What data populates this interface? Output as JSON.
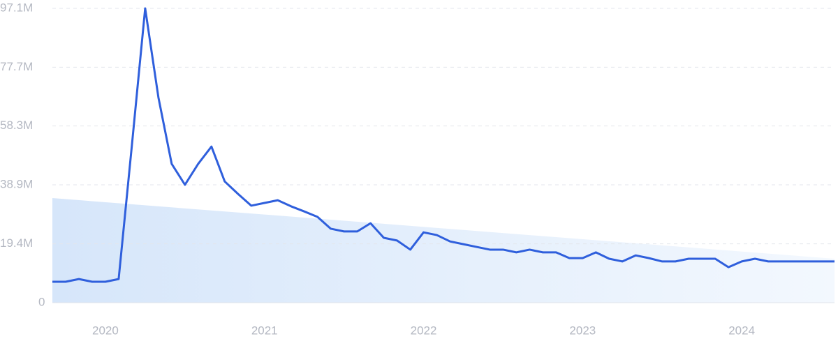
{
  "chart_data": {
    "type": "line",
    "categories": [
      null,
      null,
      null,
      null,
      "2020",
      null,
      null,
      null,
      null,
      null,
      null,
      null,
      null,
      null,
      null,
      null,
      "2021",
      null,
      null,
      null,
      null,
      null,
      null,
      null,
      null,
      null,
      null,
      null,
      "2022",
      null,
      null,
      null,
      null,
      null,
      null,
      null,
      null,
      null,
      null,
      null,
      "2023",
      null,
      null,
      null,
      null,
      null,
      null,
      null,
      null,
      null,
      null,
      null,
      "2024",
      null,
      null,
      null,
      null,
      null,
      null,
      null
    ],
    "series": [
      {
        "color": "#2f5fdc",
        "values": [
          6.9,
          6.9,
          7.8,
          6.9,
          6.9,
          7.8,
          52.0,
          97.1,
          67.7,
          45.8,
          38.9,
          45.8,
          51.5,
          40.0,
          35.9,
          32.0,
          32.9,
          33.8,
          31.8,
          30.1,
          28.3,
          24.4,
          23.5,
          23.5,
          26.2,
          21.4,
          20.5,
          17.5,
          23.2,
          22.3,
          20.2,
          19.3,
          18.4,
          17.5,
          17.5,
          16.6,
          17.5,
          16.6,
          16.6,
          14.7,
          14.7,
          16.6,
          14.5,
          13.6,
          15.6,
          14.7,
          13.6,
          13.6,
          14.5,
          14.5,
          14.5,
          11.7,
          13.6,
          14.5,
          13.6,
          13.6,
          13.6,
          13.6,
          13.6,
          13.6
        ]
      }
    ],
    "trend": [
      34.5,
      14.5
    ],
    "ylim": [
      0,
      97.1
    ],
    "yticks": [
      0,
      {
        "value": 19.4,
        "label": "19.4M"
      },
      {
        "value": 38.9,
        "label": "38.9M"
      },
      {
        "value": 58.3,
        "label": "58.3M"
      },
      {
        "value": 77.7,
        "label": "77.7M"
      },
      {
        "value": 97.1,
        "label": "97.1M"
      }
    ],
    "grid": true
  }
}
